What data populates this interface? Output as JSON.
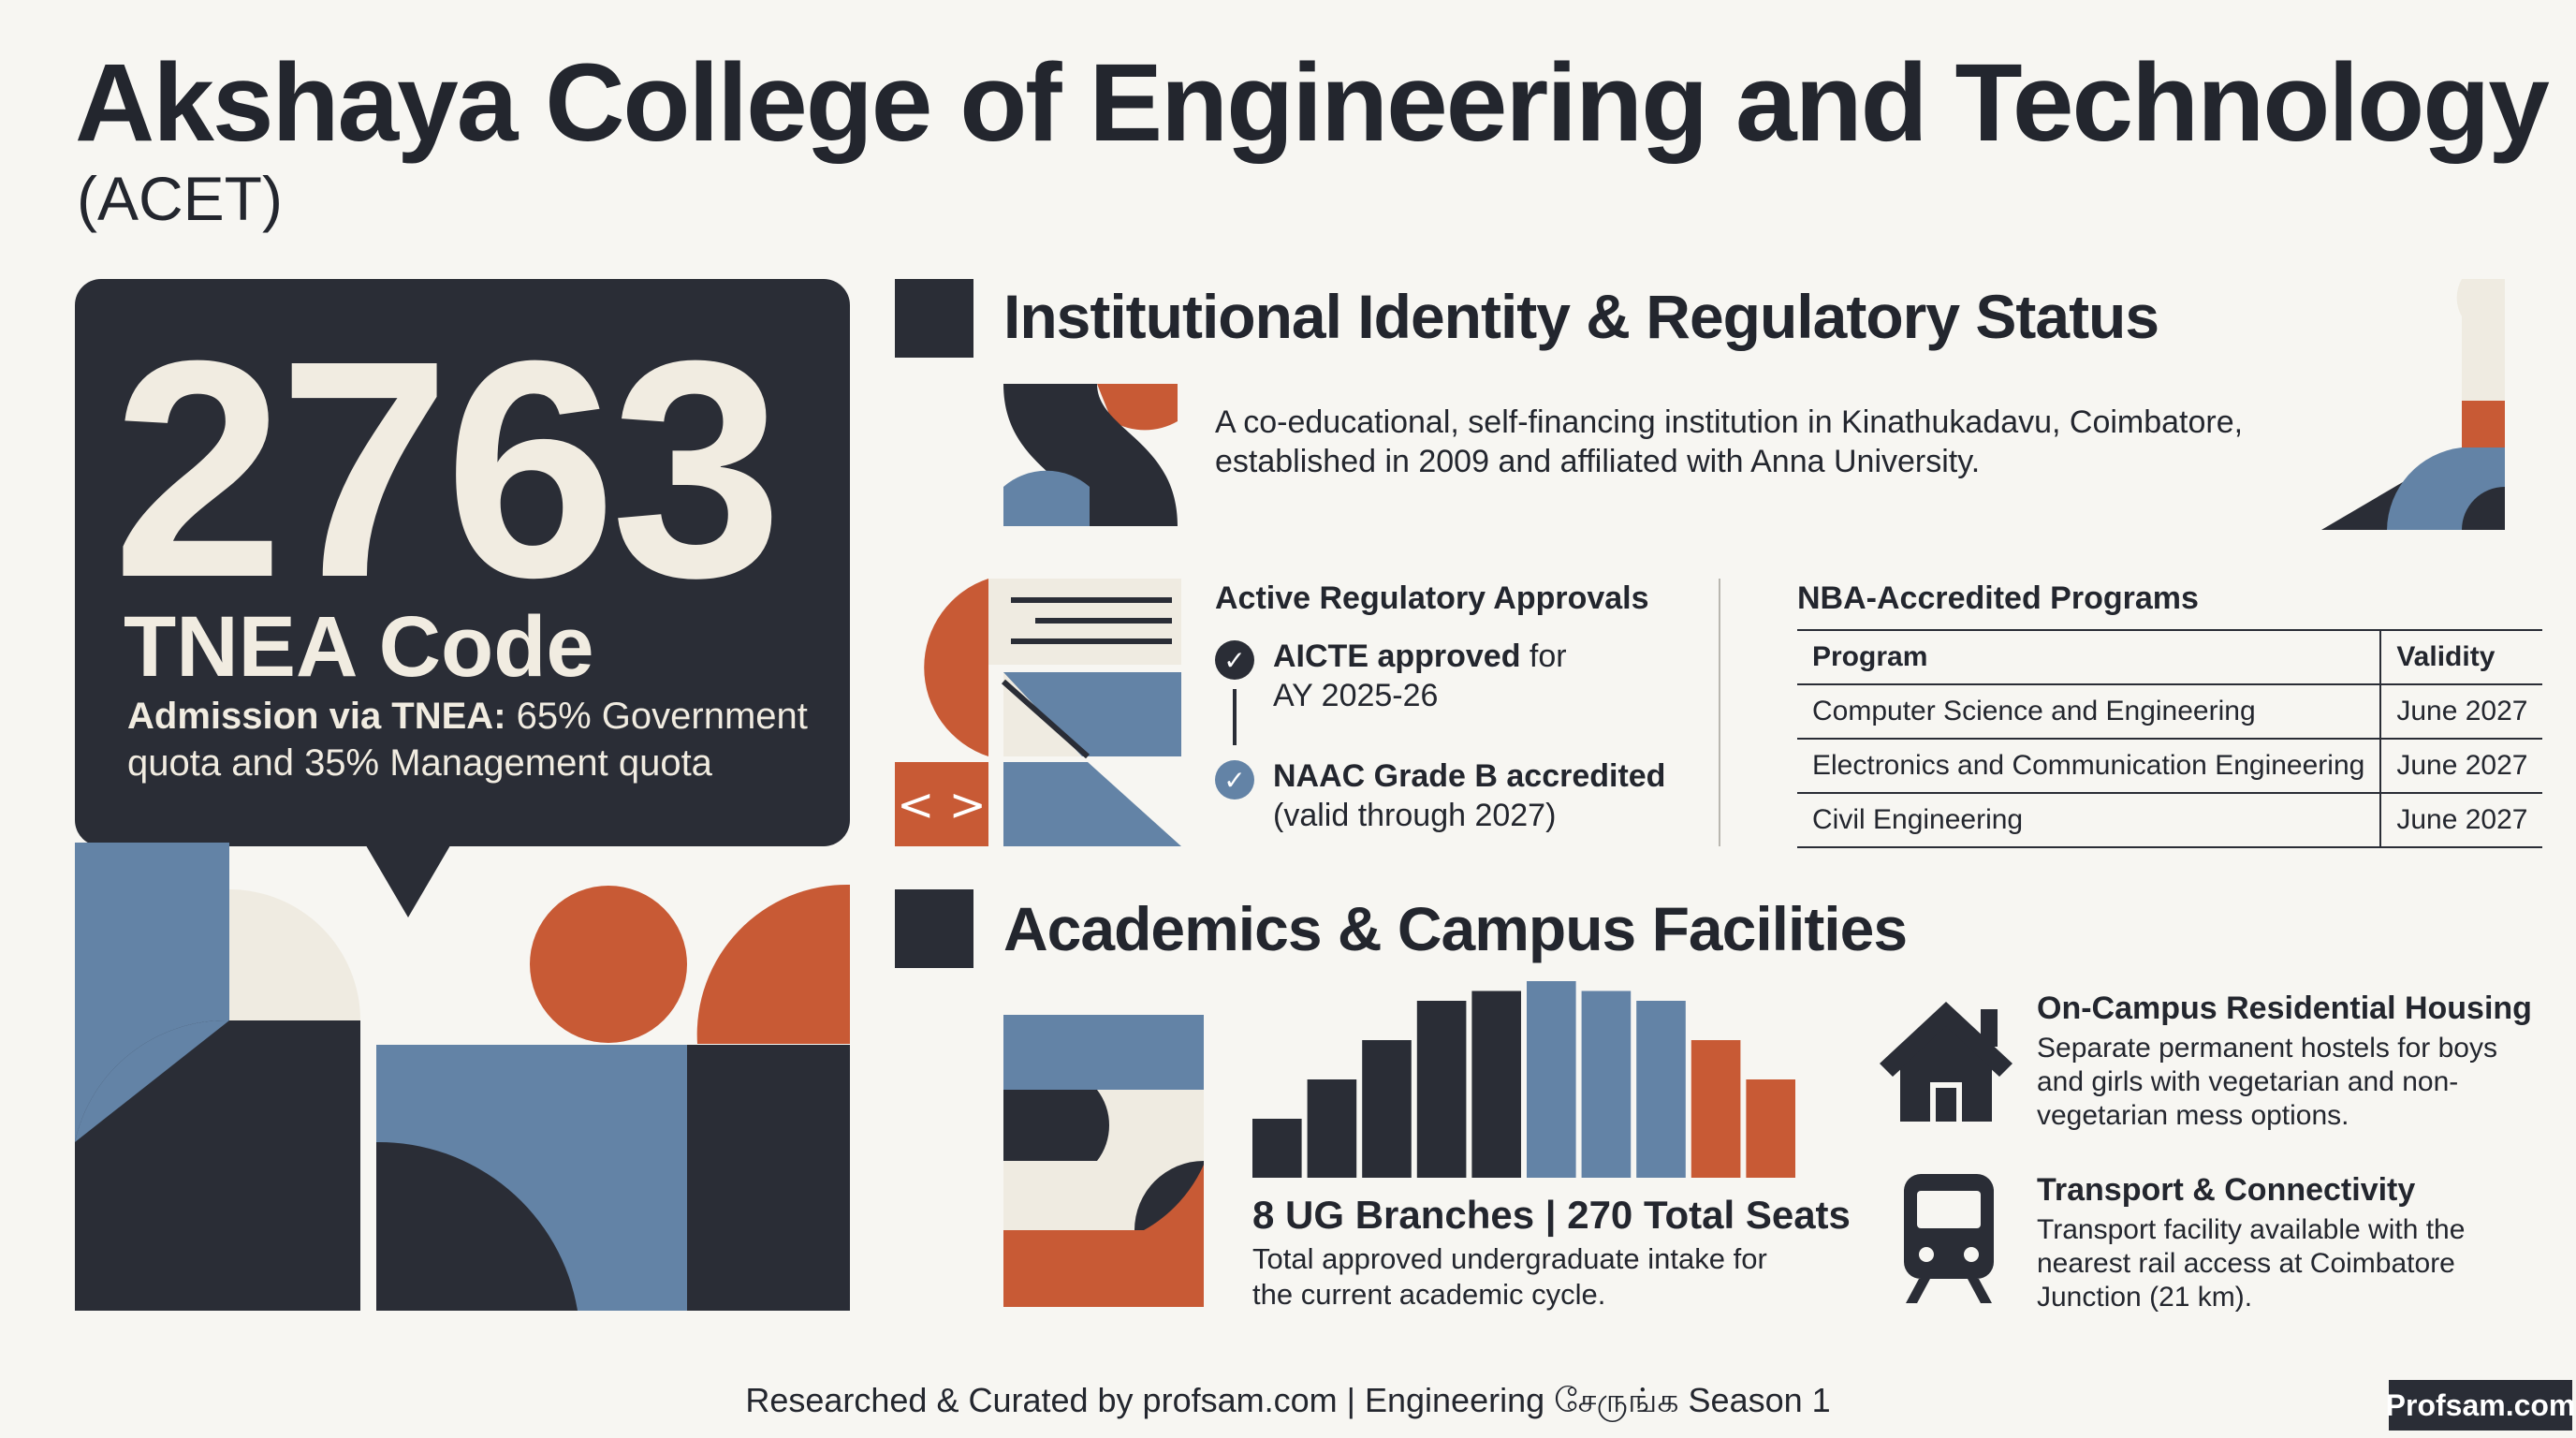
{
  "header": {
    "title": "Akshaya College of Engineering and Technology",
    "subtitle": "(ACET)"
  },
  "tnea": {
    "code": "2763",
    "label": "TNEA Code",
    "admission_lead": "Admission via TNEA:",
    "admission_rest": " 65% Government quota and 35% Management quota"
  },
  "identity": {
    "title": "Institutional Identity & Regulatory Status",
    "description": "A co-educational, self-financing institution in Kinathukadavu, Coimbatore, established in 2009 and affiliated with Anna University."
  },
  "approvals": {
    "title": "Active Regulatory Approvals",
    "items": [
      {
        "bold": "AICTE approved",
        "rest": " for",
        "line2": "AY 2025-26"
      },
      {
        "bold": "NAAC Grade B accredited",
        "rest": "",
        "line2": "(valid through 2027)"
      }
    ]
  },
  "nba": {
    "title": "NBA-Accredited Programs",
    "headers": [
      "Program",
      "Validity"
    ],
    "rows": [
      [
        "Computer Science and Engineering",
        "June 2027"
      ],
      [
        "Electronics and Communication Engineering",
        "June 2027"
      ],
      [
        "Civil Engineering",
        "June 2027"
      ]
    ]
  },
  "academics": {
    "title": "Academics & Campus Facilities",
    "stat": "8 UG Branches | 270 Total Seats",
    "stat_desc": "Total approved undergraduate intake for the current academic cycle.",
    "bar_levels": [
      0.3,
      0.5,
      0.7,
      0.9,
      0.95,
      1.0,
      0.95,
      0.9,
      0.7,
      0.5
    ],
    "bar_colors": [
      "#2a2d36",
      "#2a2d36",
      "#2a2d36",
      "#2a2d36",
      "#2a2d36",
      "#6383a6",
      "#6383a6",
      "#6383a6",
      "#c85a35",
      "#c85a35"
    ]
  },
  "housing": {
    "icon": "house-icon",
    "title": "On-Campus Residential Housing",
    "desc": "Separate permanent hostels for boys and girls with vegetarian and non-vegetarian mess options."
  },
  "transport": {
    "icon": "train-icon",
    "title": "Transport & Connectivity",
    "desc": "Transport facility available with the nearest rail access at Coimbatore Junction (21 km)."
  },
  "footer": {
    "text": "Researched & Curated by profsam.com | Engineering சேருங்க Season 1",
    "logo": "Profsam.com"
  },
  "colors": {
    "dark": "#2a2d36",
    "orange": "#c85a35",
    "blue": "#6383a6",
    "cream": "#efebe1"
  }
}
